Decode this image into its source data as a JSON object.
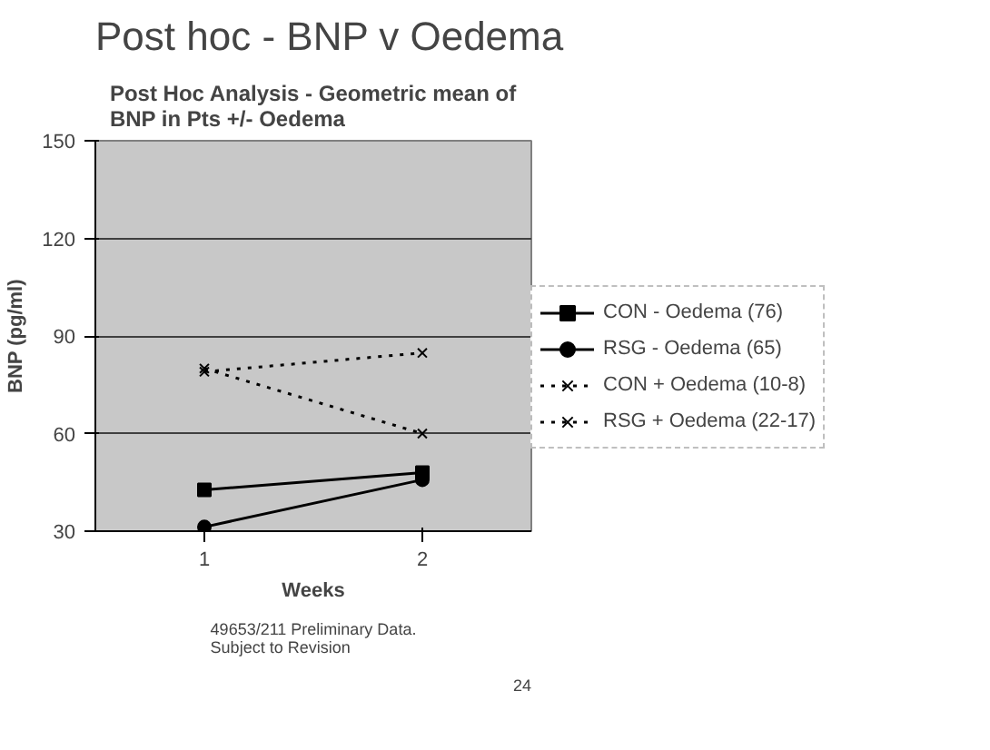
{
  "chart_data": {
    "type": "line",
    "title": "Post hoc - BNP v Oedema",
    "subtitle": "Post Hoc Analysis - Geometric mean of\nBNP in Pts +/- Oedema",
    "xlabel": "Weeks",
    "ylabel": "BNP (pg/ml)",
    "categories": [
      "1",
      "2"
    ],
    "series": [
      {
        "name": "CON - Oedema (76)",
        "color": "#000000",
        "values": [
          42.7,
          48
        ],
        "marker": "square",
        "line_style": "solid"
      },
      {
        "name": "RSG - Oedema (65)",
        "color": "#000000",
        "values": [
          31.3,
          45.8
        ],
        "marker": "circle",
        "line_style": "solid"
      },
      {
        "name": "CON + Oedema (10-8)",
        "color": "#000000",
        "values": [
          79,
          84.8
        ],
        "marker": "cross",
        "line_style": "dotted"
      },
      {
        "name": "RSG + Oedema (22-17)",
        "color": "#000000",
        "values": [
          80,
          60
        ],
        "marker": "cross",
        "line_style": "dotted"
      }
    ],
    "ylim": [
      30,
      150
    ],
    "yticks": [
      30,
      60,
      90,
      120,
      150
    ],
    "grid": "y",
    "legend": "right",
    "annotations": [
      "49653/211 Preliminary Data.\nSubject to Revision",
      "24"
    ]
  }
}
